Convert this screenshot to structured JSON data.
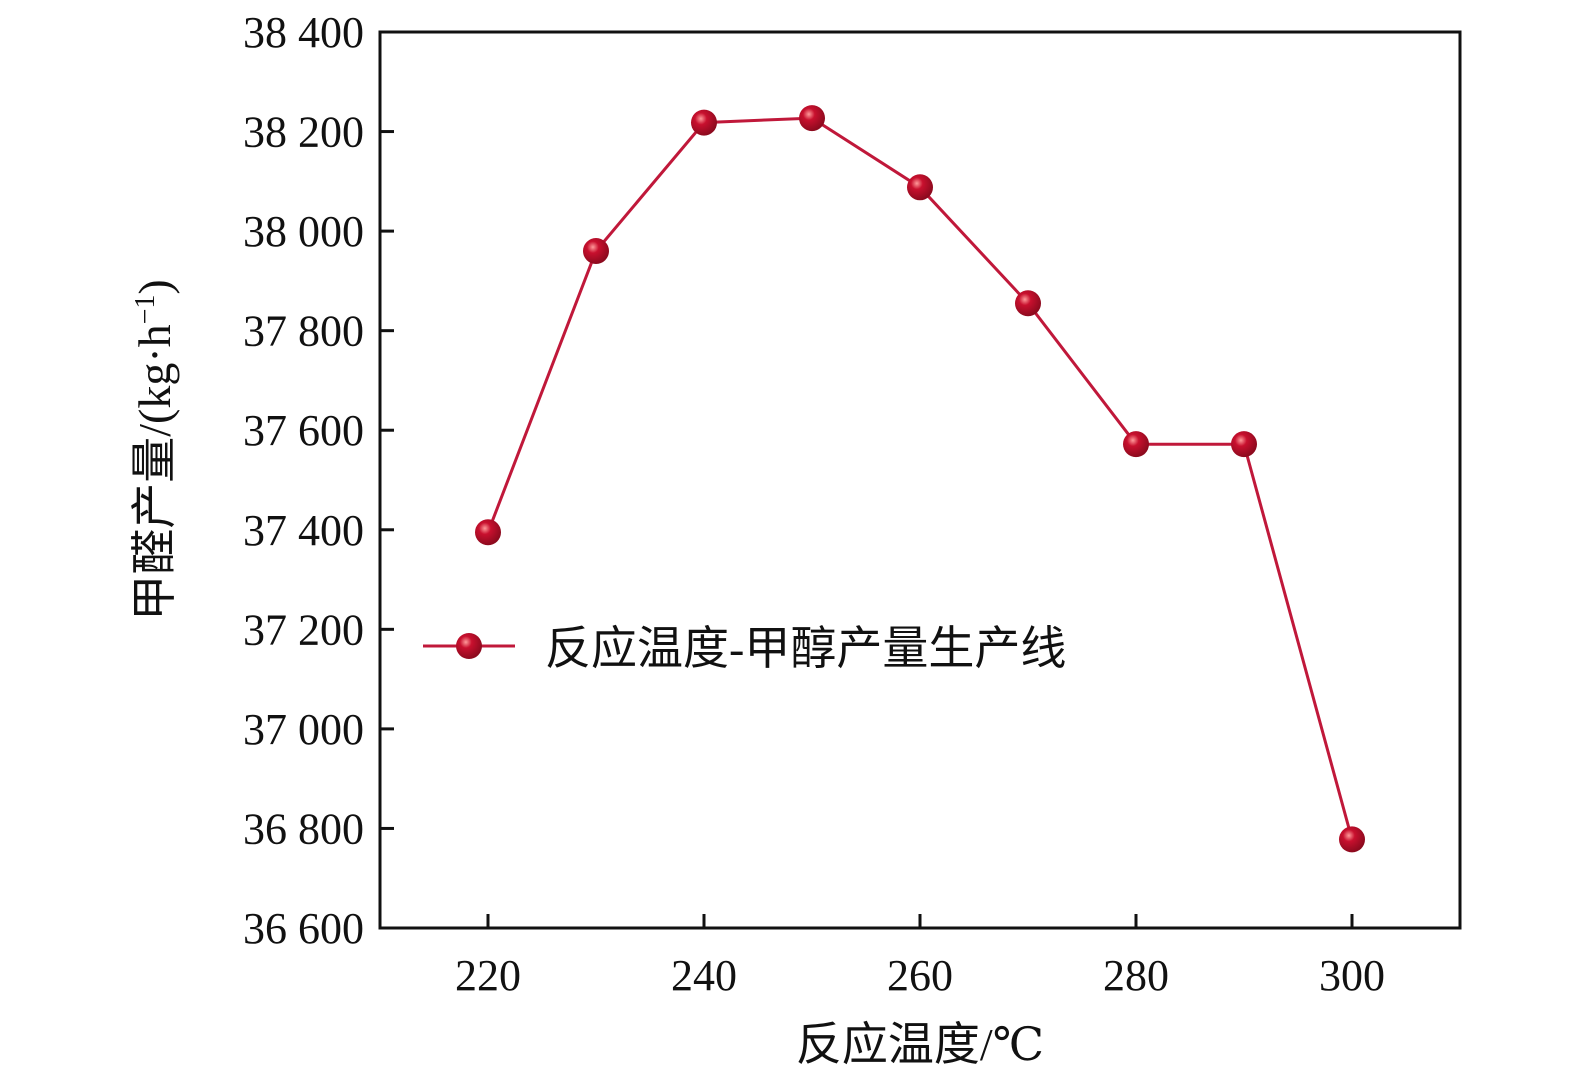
{
  "chart_data": {
    "type": "line",
    "x": [
      220,
      230,
      240,
      250,
      260,
      270,
      280,
      290,
      300
    ],
    "series": [
      {
        "name": "反应温度-甲醇产量生产线",
        "values": [
          37395,
          37960,
          38218,
          38227,
          38088,
          37855,
          37572,
          37572,
          36778
        ]
      }
    ],
    "xlabel": "反应温度/℃",
    "ylabel_prefix": "甲醛产量/(kg·h",
    "ylabel_superscript": "−1",
    "ylabel_suffix": ")",
    "xlim": [
      210,
      310
    ],
    "ylim": [
      36600,
      38400
    ],
    "xticks": [
      220,
      240,
      260,
      280,
      300
    ],
    "xtick_labels": [
      "220",
      "240",
      "260",
      "280",
      "300"
    ],
    "yticks": [
      36600,
      36800,
      37000,
      37200,
      37400,
      37600,
      37800,
      38000,
      38200,
      38400
    ],
    "ytick_labels": [
      "36 600",
      "36 800",
      "37 000",
      "37 200",
      "37 400",
      "37 600",
      "37 800",
      "38 000",
      "38 200",
      "38 400"
    ],
    "grid": false,
    "legend_position": "center-left",
    "colors": {
      "line": "#c0183a",
      "marker": "#c8102e",
      "marker_highlight": "#ff9a9a",
      "axis": "#111111"
    }
  }
}
